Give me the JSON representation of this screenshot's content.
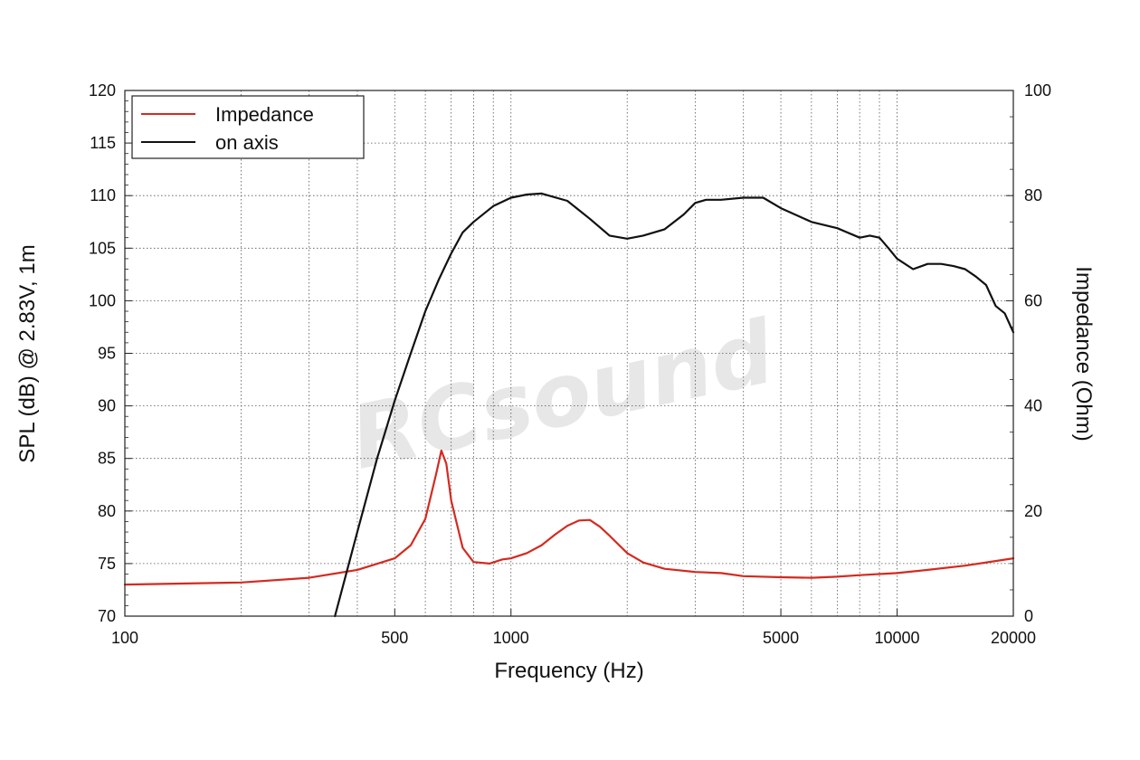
{
  "chart_data": {
    "type": "line",
    "xlabel": "Frequency (Hz)",
    "ylabel": "SPL (dB) @ 2.83V, 1m",
    "y2label": "Impedance (Ohm)",
    "x_scale": "log",
    "xlim": [
      100,
      20000
    ],
    "ylim": [
      70,
      120
    ],
    "y2lim": [
      0,
      100
    ],
    "grid": true,
    "legend_position": "top-left",
    "x_tick_labels": [
      "100",
      "500",
      "1000",
      "5000",
      "10000",
      "20000"
    ],
    "y_tick_labels": [
      "70",
      "75",
      "80",
      "85",
      "90",
      "95",
      "100",
      "105",
      "110",
      "115",
      "120"
    ],
    "y2_tick_labels": [
      "0",
      "20",
      "40",
      "60",
      "80",
      "100"
    ],
    "watermark": "RCsound",
    "series": [
      {
        "name": "Impedance",
        "axis": "right",
        "color": "#d42a20",
        "x": [
          100,
          200,
          300,
          400,
          500,
          550,
          600,
          640,
          660,
          680,
          700,
          750,
          800,
          880,
          950,
          1000,
          1100,
          1200,
          1300,
          1400,
          1500,
          1600,
          1700,
          1800,
          2000,
          2200,
          2500,
          3000,
          3500,
          4000,
          5000,
          6000,
          7000,
          8000,
          10000,
          12000,
          15000,
          20000
        ],
        "values": [
          6,
          6.4,
          7.3,
          8.8,
          11,
          13.5,
          18.5,
          27,
          31.5,
          29,
          22,
          13,
          10.3,
          10,
          10.8,
          11,
          12,
          13.5,
          15.5,
          17.2,
          18.2,
          18.3,
          17,
          15.3,
          12,
          10.2,
          9,
          8.4,
          8.2,
          7.6,
          7.4,
          7.3,
          7.5,
          7.8,
          8.2,
          8.8,
          9.6,
          11
        ]
      },
      {
        "name": "on axis",
        "axis": "left",
        "color": "#111111",
        "x": [
          350,
          400,
          450,
          500,
          550,
          600,
          650,
          700,
          750,
          800,
          900,
          1000,
          1100,
          1200,
          1400,
          1600,
          1800,
          2000,
          2200,
          2500,
          2800,
          3000,
          3200,
          3500,
          4000,
          4500,
          5000,
          6000,
          7000,
          8000,
          8500,
          9000,
          9500,
          10000,
          11000,
          12000,
          13000,
          14000,
          15000,
          16000,
          17000,
          18000,
          19000,
          20000
        ],
        "values": [
          70,
          78,
          85,
          90.5,
          95,
          99,
          102,
          104.5,
          106.5,
          107.5,
          109,
          109.8,
          110.1,
          110.2,
          109.5,
          107.8,
          106.2,
          105.9,
          106.2,
          106.8,
          108.2,
          109.3,
          109.6,
          109.6,
          109.8,
          109.8,
          108.8,
          107.5,
          106.9,
          106,
          106.2,
          106,
          105,
          104,
          103,
          103.5,
          103.5,
          103.3,
          103,
          102.3,
          101.5,
          99.5,
          98.8,
          97
        ]
      }
    ]
  }
}
